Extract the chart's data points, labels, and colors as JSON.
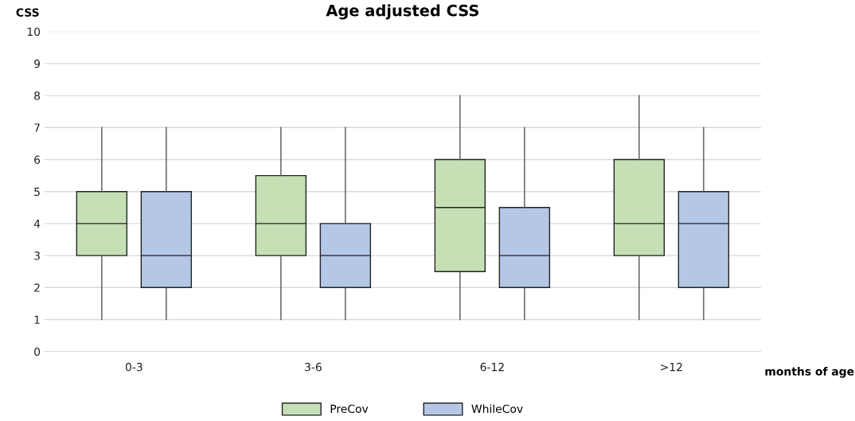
{
  "chart_data": {
    "type": "box",
    "title": "Age adjusted CSS",
    "ylabel": "CSS",
    "xlabel": "months of age",
    "categories": [
      "0-3",
      "3-6",
      "6-12",
      ">12"
    ],
    "series": [
      {
        "name": "PreCov",
        "color": "#c5e0b4",
        "boxes": [
          {
            "low": 1,
            "q1": 3,
            "median": 4,
            "q3": 5,
            "high": 7
          },
          {
            "low": 1,
            "q1": 3,
            "median": 4,
            "q3": 5.5,
            "high": 7
          },
          {
            "low": 1,
            "q1": 2.5,
            "median": 4.5,
            "q3": 6,
            "high": 8
          },
          {
            "low": 1,
            "q1": 3,
            "median": 4,
            "q3": 6,
            "high": 8
          }
        ]
      },
      {
        "name": "WhileCov",
        "color": "#b4c7e7",
        "boxes": [
          {
            "low": 1,
            "q1": 2,
            "median": 3,
            "q3": 5,
            "high": 7
          },
          {
            "low": 1,
            "q1": 2,
            "median": 3,
            "q3": 4,
            "high": 7
          },
          {
            "low": 1,
            "q1": 2,
            "median": 3,
            "q3": 4.5,
            "high": 7
          },
          {
            "low": 1,
            "q1": 2,
            "median": 4,
            "q3": 5,
            "high": 7
          }
        ]
      }
    ],
    "ylim": [
      0,
      10
    ],
    "yticks": [
      0,
      1,
      2,
      3,
      4,
      5,
      6,
      7,
      8,
      9,
      10
    ],
    "grid": "y",
    "legend": "bottom"
  }
}
